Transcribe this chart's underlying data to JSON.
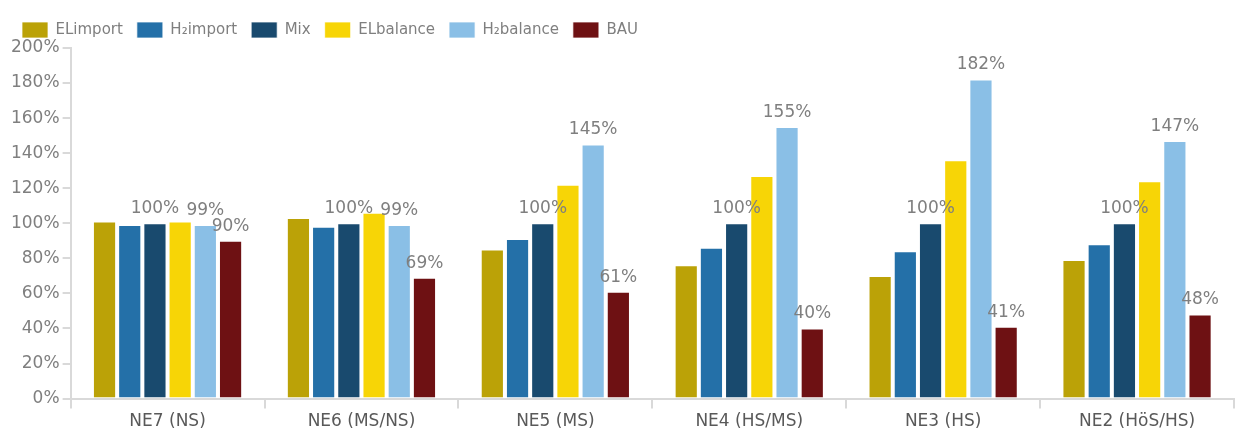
{
  "chart_data": {
    "type": "bar",
    "categories": [
      "NE7 (NS)",
      "NE6 (MS/NS)",
      "NE5 (MS)",
      "NE4 (HS/MS)",
      "NE3 (HS)",
      "NE2 (HöS/HS)"
    ],
    "series": [
      {
        "name": "ELimport",
        "color": "#bba207",
        "values": [
          101,
          103,
          85,
          76,
          70,
          79
        ]
      },
      {
        "name": "H₂import",
        "color": "#2470a8",
        "values": [
          99,
          98,
          91,
          86,
          84,
          88
        ]
      },
      {
        "name": "Mix",
        "color": "#194a6e",
        "values": [
          100,
          100,
          100,
          100,
          100,
          100
        ],
        "value_labels": [
          "100%",
          "100%",
          "100%",
          "100%",
          "100%",
          "100%"
        ]
      },
      {
        "name": "ELbalance",
        "color": "#f7d506",
        "values": [
          101,
          106,
          122,
          127,
          136,
          124
        ]
      },
      {
        "name": "H₂balance",
        "color": "#8abfe6",
        "values": [
          99,
          99,
          145,
          155,
          182,
          147
        ],
        "value_labels": [
          "99%",
          "99%",
          "145%",
          "155%",
          "182%",
          "147%"
        ]
      },
      {
        "name": "BAU",
        "color": "#6e1113",
        "values": [
          90,
          69,
          61,
          40,
          41,
          48
        ],
        "value_labels": [
          "90%",
          "69%",
          "61%",
          "40%",
          "41%",
          "48%"
        ]
      }
    ],
    "ylim": [
      0,
      200
    ],
    "yticks": [
      {
        "value": 0,
        "label": "0%"
      },
      {
        "value": 20,
        "label": "20%"
      },
      {
        "value": 40,
        "label": "40%"
      },
      {
        "value": 60,
        "label": "60%"
      },
      {
        "value": 80,
        "label": "80%"
      },
      {
        "value": 100,
        "label": "100%"
      },
      {
        "value": 120,
        "label": "120%"
      },
      {
        "value": 140,
        "label": "140%"
      },
      {
        "value": 160,
        "label": "160%"
      },
      {
        "value": 180,
        "label": "180%"
      },
      {
        "value": 200,
        "label": "200%"
      }
    ],
    "grid": false,
    "legend": "top left"
  }
}
